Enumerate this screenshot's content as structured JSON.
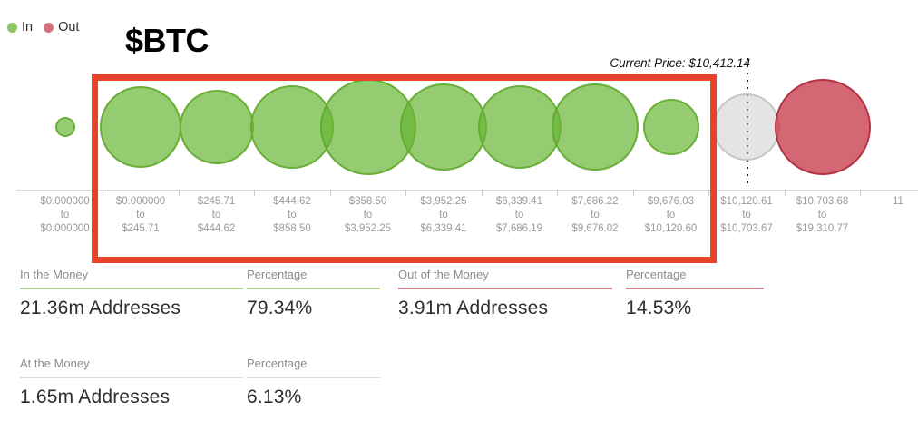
{
  "legend": {
    "in_label": "In",
    "out_label": "Out",
    "in_color": "#8dc565",
    "out_color": "#d4717e"
  },
  "title": "$BTC",
  "current_price_label": "Current Price: $10,412.14",
  "colors": {
    "in_bubble": "#68b534",
    "at_bubble": "#e4e4e4",
    "out_bubble": "#c53848",
    "annotation_box": "#e8432a",
    "underline_in": "#a9ce90",
    "underline_out": "#c9808c",
    "underline_at": "#dcdcdc"
  },
  "chart_data": {
    "type": "bubble",
    "title": "$BTC In/Out of the Money address distribution by price range",
    "current_price": "$10,412.14",
    "legend": [
      "In",
      "Out"
    ],
    "highlight_note": "red rectangle highlights the in-the-money ranges from $0.000000-$245.71 through $9,676.03-$10,120.60",
    "bands": [
      {
        "label_lines": [
          "$0.000000",
          "to",
          "$0.000000"
        ],
        "status": "in",
        "radius": 11
      },
      {
        "label_lines": [
          "$0.000000",
          "to",
          "$245.71"
        ],
        "status": "in",
        "radius": 45
      },
      {
        "label_lines": [
          "$245.71",
          "to",
          "$444.62"
        ],
        "status": "in",
        "radius": 41
      },
      {
        "label_lines": [
          "$444.62",
          "to",
          "$858.50"
        ],
        "status": "in",
        "radius": 46
      },
      {
        "label_lines": [
          "$858.50",
          "to",
          "$3,952.25"
        ],
        "status": "in",
        "radius": 53
      },
      {
        "label_lines": [
          "$3,952.25",
          "to",
          "$6,339.41"
        ],
        "status": "in",
        "radius": 48
      },
      {
        "label_lines": [
          "$6,339.41",
          "to",
          "$7,686.19"
        ],
        "status": "in",
        "radius": 46
      },
      {
        "label_lines": [
          "$7,686.22",
          "to",
          "$9,676.02"
        ],
        "status": "in",
        "radius": 48
      },
      {
        "label_lines": [
          "$9,676.03",
          "to",
          "$10,120.60"
        ],
        "status": "in",
        "radius": 31
      },
      {
        "label_lines": [
          "$10,120.61",
          "to",
          "$10,703.67"
        ],
        "status": "at",
        "radius": 37
      },
      {
        "label_lines": [
          "$10,703.68",
          "to",
          "$19,310.77"
        ],
        "status": "out",
        "radius": 53
      },
      {
        "label_lines": [
          "11"
        ],
        "status": "none",
        "radius": 0
      }
    ]
  },
  "stats": [
    {
      "label": "In the Money",
      "value": "21.36m Addresses",
      "status": "in"
    },
    {
      "label": "Percentage",
      "value": "79.34%",
      "status": "in"
    },
    {
      "label": "Out of the Money",
      "value": "3.91m Addresses",
      "status": "out"
    },
    {
      "label": "Percentage",
      "value": "14.53%",
      "status": "out"
    },
    {
      "label": "At the Money",
      "value": "1.65m Addresses",
      "status": "at"
    },
    {
      "label": "Percentage",
      "value": "6.13%",
      "status": "at"
    }
  ]
}
